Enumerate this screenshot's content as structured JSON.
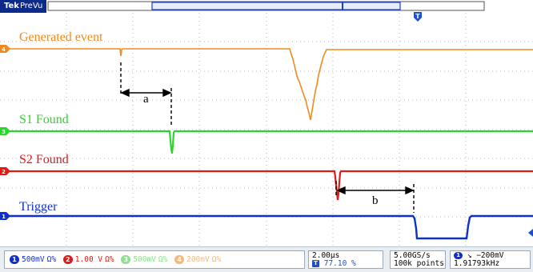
{
  "app": {
    "brand": "Tek",
    "mode": "PreVu"
  },
  "trigger_marker": {
    "label": "T"
  },
  "colors": {
    "ch1": "#0f2fcf",
    "ch2": "#e01919",
    "ch3": "#2bd62b",
    "ch4": "#f08a1c",
    "grid": "#9aa6b3"
  },
  "channels": [
    {
      "id": "4",
      "label": "Generated event",
      "color": "#f08a1c"
    },
    {
      "id": "3",
      "label": "S1 Found",
      "color": "#2bd62b"
    },
    {
      "id": "2",
      "label": "S2 Found",
      "color": "#e01919"
    },
    {
      "id": "1",
      "label": "Trigger",
      "color": "#0f2fcf"
    }
  ],
  "annotations": {
    "a": "a",
    "b": "b"
  },
  "status": {
    "ch1": {
      "num": "1",
      "scale": "500mV",
      "coupling": "Ω%"
    },
    "ch2": {
      "num": "2",
      "scale": "1.00 V",
      "coupling": "Ω%"
    },
    "ch3": {
      "num": "3",
      "scale": "500mV",
      "coupling": "Ω%"
    },
    "ch4": {
      "num": "4",
      "scale": "200mV",
      "coupling": "Ω%"
    },
    "timebase": "2.00µs",
    "position_icon": "T",
    "position": "77.10 %",
    "sample_rate": "5.00GS/s",
    "record_length": "100k points",
    "trigger_channel": "1",
    "trigger_slope": "↘",
    "trigger_level": "−200mV",
    "trigger_freq": "1.91793kHz"
  }
}
